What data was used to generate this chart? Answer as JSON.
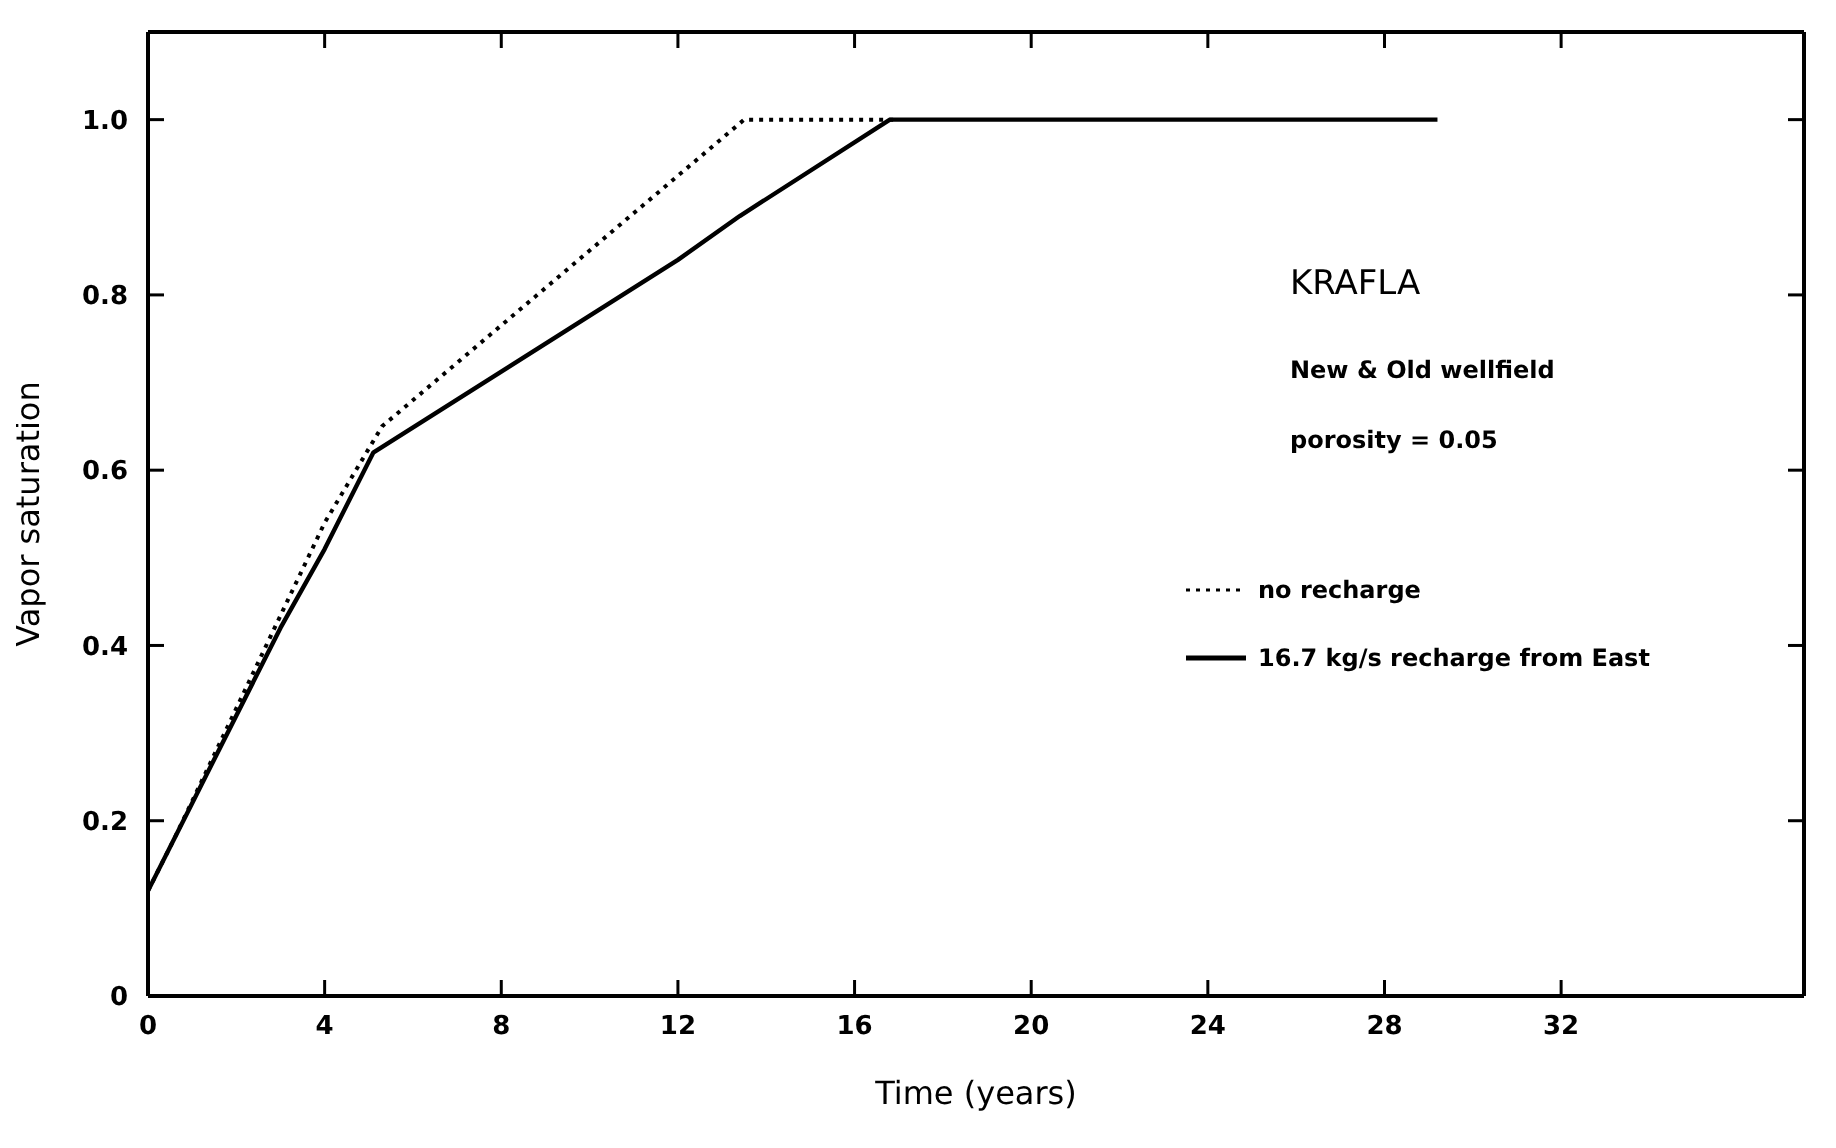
{
  "chart_data": {
    "type": "line",
    "xlabel": "Time (years)",
    "ylabel": "Vapor saturation",
    "annotations": [
      "KRAFLA",
      "New & Old wellfield",
      "porosity = 0.05"
    ],
    "series": [
      {
        "name": "no recharge",
        "color": "#000000",
        "line_style": "dotted",
        "x": [
          0,
          0.6,
          4,
          5.3,
          13.5,
          17
        ],
        "values": [
          0.12,
          0.18,
          0.54,
          0.65,
          1.0,
          1.0
        ]
      },
      {
        "name": "16.7 kg/s recharge from East",
        "color": "#000000",
        "line_style": "solid",
        "x": [
          0,
          1,
          3,
          4,
          5.1,
          12,
          13.4,
          16.8,
          29.2
        ],
        "values": [
          0.12,
          0.22,
          0.42,
          0.51,
          0.62,
          0.84,
          0.89,
          1.0,
          1.0
        ]
      }
    ],
    "xlim": [
      0,
      37.5
    ],
    "xticks": [
      0,
      4,
      8,
      12,
      16,
      20,
      24,
      28,
      32
    ],
    "ylim": [
      0,
      1.1
    ],
    "yticks": [
      0,
      0.2,
      0.4,
      0.6,
      0.8,
      {
        "value": 1,
        "label": "1.0"
      }
    ],
    "legend": "right",
    "marker": "none"
  }
}
